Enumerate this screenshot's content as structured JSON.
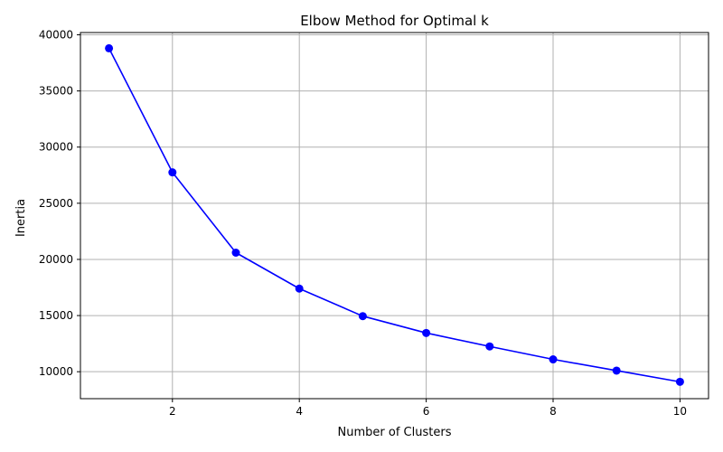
{
  "chart_data": {
    "type": "line",
    "title": "Elbow Method for Optimal k",
    "xlabel": "Number of Clusters",
    "ylabel": "Inertia",
    "xlim": [
      0.55,
      10.45
    ],
    "ylim": [
      7600,
      40200
    ],
    "xticks": [
      2,
      4,
      6,
      8,
      10
    ],
    "xtick_labels": [
      "2",
      "4",
      "6",
      "8",
      "10"
    ],
    "yticks": [
      10000,
      15000,
      20000,
      25000,
      30000,
      35000,
      40000
    ],
    "ytick_labels": [
      "10000",
      "15000",
      "20000",
      "25000",
      "30000",
      "35000",
      "40000"
    ],
    "grid": true,
    "marker": "circle",
    "series": [
      {
        "x": [
          1,
          2,
          3,
          4,
          5,
          6,
          7,
          8,
          9,
          10
        ],
        "values": [
          38800,
          27750,
          20600,
          17400,
          14950,
          13450,
          12250,
          11100,
          10100,
          9100
        ],
        "color": "#0000ff"
      }
    ],
    "colors": {
      "line": "#0000ff",
      "grid": "#b0b0b0",
      "axes": "#000000"
    }
  }
}
